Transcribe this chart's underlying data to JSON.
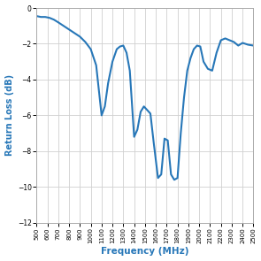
{
  "xlabel": "Frequency (MHz)",
  "ylabel": "Return Loss (dB)",
  "line_color": "#2777b8",
  "line_width": 1.5,
  "background_color": "#ffffff",
  "grid_color": "#d0d0d0",
  "xlim": [
    500,
    2500
  ],
  "ylim": [
    -12,
    0
  ],
  "xticks": [
    500,
    600,
    700,
    800,
    900,
    1000,
    1100,
    1200,
    1300,
    1400,
    1500,
    1600,
    1700,
    1800,
    1900,
    2000,
    2100,
    2200,
    2300,
    2400,
    2500
  ],
  "yticks": [
    0,
    -2,
    -4,
    -6,
    -8,
    -10,
    -12
  ],
  "freq": [
    500,
    540,
    580,
    620,
    660,
    700,
    750,
    800,
    850,
    900,
    950,
    1000,
    1050,
    1100,
    1130,
    1160,
    1200,
    1240,
    1270,
    1300,
    1330,
    1360,
    1400,
    1430,
    1460,
    1490,
    1520,
    1550,
    1580,
    1620,
    1650,
    1680,
    1710,
    1740,
    1770,
    1800,
    1830,
    1860,
    1890,
    1920,
    1950,
    1980,
    2010,
    2040,
    2080,
    2120,
    2160,
    2200,
    2240,
    2280,
    2320,
    2360,
    2400,
    2450,
    2500
  ],
  "rl": [
    -0.45,
    -0.5,
    -0.5,
    -0.55,
    -0.65,
    -0.8,
    -1.0,
    -1.2,
    -1.4,
    -1.6,
    -1.9,
    -2.3,
    -3.2,
    -6.0,
    -5.5,
    -4.2,
    -3.0,
    -2.3,
    -2.15,
    -2.1,
    -2.5,
    -3.5,
    -7.2,
    -6.8,
    -5.8,
    -5.5,
    -5.7,
    -5.9,
    -7.5,
    -9.5,
    -9.3,
    -7.3,
    -7.4,
    -9.3,
    -9.6,
    -9.5,
    -7.0,
    -5.0,
    -3.5,
    -2.8,
    -2.3,
    -2.1,
    -2.15,
    -3.0,
    -3.4,
    -3.5,
    -2.5,
    -1.8,
    -1.7,
    -1.8,
    -1.9,
    -2.1,
    -1.95,
    -2.05,
    -2.1
  ]
}
